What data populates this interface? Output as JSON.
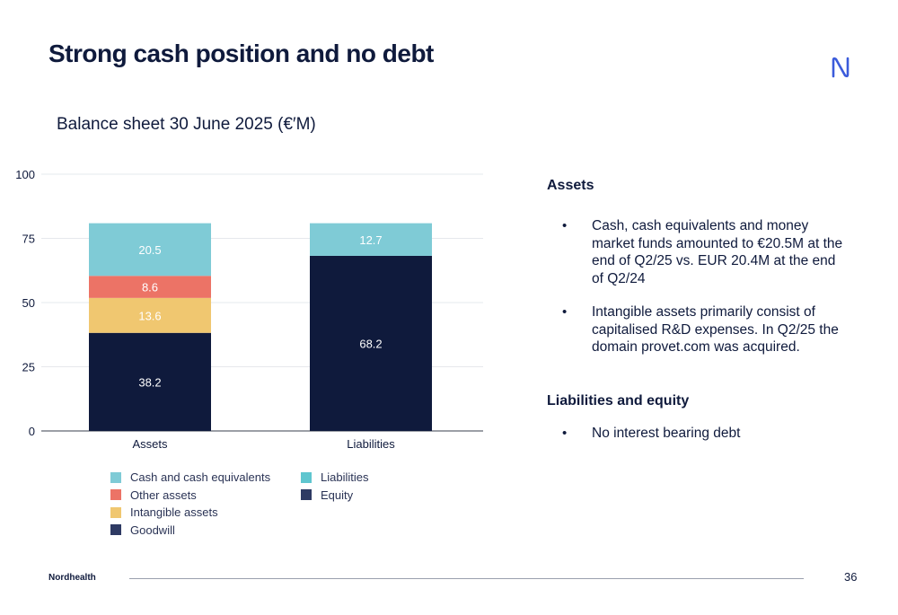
{
  "slide": {
    "title": "Strong cash position and no debt",
    "page_number": "36",
    "brand": "Nordhealth"
  },
  "colors": {
    "navy": "#0f1a3c",
    "teal": "#7fcbd6",
    "coral": "#ec7366",
    "gold": "#f0c770",
    "grid": "#e6e8ec"
  },
  "icons": {
    "logo": "nordhealth-logo-icon"
  },
  "chart_data": {
    "type": "bar",
    "stacked": true,
    "title": "Balance sheet 30 June 2025 (€′M)",
    "categories": [
      "Assets",
      "Liabilities"
    ],
    "ylim": [
      0,
      100
    ],
    "yticks": [
      0,
      25,
      50,
      75,
      100
    ],
    "grid": true,
    "series": [
      {
        "name": "Goodwill",
        "category": "Assets",
        "value": 38.2,
        "color": "#0f1a3c"
      },
      {
        "name": "Intangible assets",
        "category": "Assets",
        "value": 13.6,
        "color": "#f0c770"
      },
      {
        "name": "Other assets",
        "category": "Assets",
        "value": 8.6,
        "color": "#ec7366"
      },
      {
        "name": "Cash and cash equivalents",
        "category": "Assets",
        "value": 20.5,
        "color": "#7fcbd6"
      },
      {
        "name": "Equity",
        "category": "Liabilities",
        "value": 68.2,
        "color": "#0f1a3c"
      },
      {
        "name": "Liabilities",
        "category": "Liabilities",
        "value": 12.7,
        "color": "#7fcbd6"
      }
    ],
    "legend_assets": [
      {
        "label": "Cash and cash equivalents",
        "color": "#7fcbd6"
      },
      {
        "label": "Other assets",
        "color": "#ec7366"
      },
      {
        "label": "Intangible assets",
        "color": "#f0c770"
      },
      {
        "label": "Goodwill",
        "color": "#2e3a63"
      }
    ],
    "legend_liabilities": [
      {
        "label": "Liabilities",
        "color": "#5fc6cf"
      },
      {
        "label": "Equity",
        "color": "#2e3a63"
      }
    ]
  },
  "side": {
    "assets_heading": "Assets",
    "assets_bullets": [
      "Cash, cash equivalents and money market funds amounted to €20.5M at the end of Q2/25 vs. EUR 20.4M at the end of Q2/24",
      "Intangible assets primarily consist of capitalised R&D expenses. In Q2/25 the domain provet.com was acquired."
    ],
    "liabilities_heading": "Liabilities and equity",
    "liabilities_bullets": [
      "No interest bearing debt"
    ]
  }
}
